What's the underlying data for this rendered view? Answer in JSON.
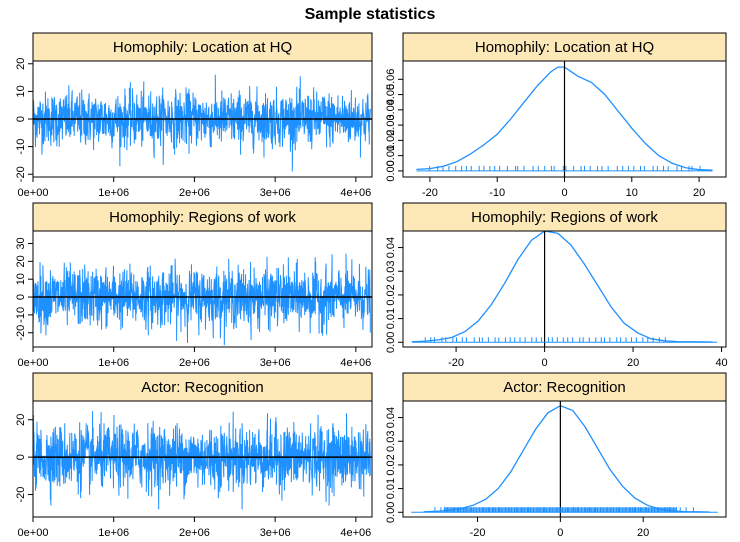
{
  "figure": {
    "title": "Sample statistics"
  },
  "colors": {
    "series": "#1e90ff",
    "strip": "#fde8b7",
    "axis": "#000000"
  },
  "chart_data": [
    {
      "type": "line",
      "panel": "trace",
      "title": "Homophily: Location at HQ",
      "xlim": [
        0,
        4200000
      ],
      "ylim": [
        -21,
        21
      ],
      "x_ticks": [
        0,
        1000000,
        2000000,
        3000000,
        4000000
      ],
      "x_tick_labels": [
        "0e+00",
        "1e+06",
        "2e+06",
        "3e+06",
        "4e+06"
      ],
      "y_ticks": [
        -20,
        -10,
        0,
        10,
        20
      ],
      "y_tick_labels": [
        "-20",
        "-10",
        "0",
        "10",
        "20"
      ],
      "mean_line": 0,
      "spread_sd": 4.9,
      "y_range": [
        -19,
        19
      ]
    },
    {
      "type": "area",
      "panel": "density",
      "title": "Homophily: Location at HQ",
      "xlim": [
        -24,
        24
      ],
      "ylim": [
        -0.004,
        0.072
      ],
      "x_ticks": [
        -20,
        -10,
        0,
        10,
        20
      ],
      "x_tick_labels": [
        "-20",
        "-10",
        "0",
        "10",
        "20"
      ],
      "y_ticks": [
        0,
        0.01,
        0.02,
        0.03,
        0.04,
        0.05,
        0.06
      ],
      "y_tick_labels": [
        "0.00",
        "0.01",
        "0.02",
        "0.03",
        "0.04",
        "0.05",
        "0.06"
      ],
      "density": {
        "x": [
          -22,
          -20,
          -18,
          -16,
          -14,
          -12,
          -10,
          -8,
          -6,
          -4,
          -2,
          -1,
          0,
          1,
          2,
          4,
          6,
          8,
          10,
          12,
          14,
          16,
          18,
          20,
          22
        ],
        "y": [
          0.001,
          0.0015,
          0.003,
          0.006,
          0.011,
          0.017,
          0.024,
          0.034,
          0.045,
          0.056,
          0.065,
          0.068,
          0.068,
          0.065,
          0.062,
          0.058,
          0.05,
          0.039,
          0.028,
          0.018,
          0.01,
          0.005,
          0.002,
          0.0008,
          0.0005
        ]
      },
      "vline": 0,
      "rug_range": [
        -20,
        20
      ]
    },
    {
      "type": "line",
      "panel": "trace",
      "title": "Homophily: Regions of work",
      "xlim": [
        0,
        4200000
      ],
      "ylim": [
        -28,
        37
      ],
      "x_ticks": [
        0,
        1000000,
        2000000,
        3000000,
        4000000
      ],
      "x_tick_labels": [
        "0e+00",
        "1e+06",
        "2e+06",
        "3e+06",
        "4e+06"
      ],
      "y_ticks": [
        -20,
        -10,
        0,
        10,
        20,
        30
      ],
      "y_tick_labels": [
        "-20",
        "-10",
        "0",
        "10",
        "20",
        "30"
      ],
      "mean_line": 0,
      "spread_sd": 8.2,
      "y_range": [
        -27,
        34
      ]
    },
    {
      "type": "area",
      "panel": "density",
      "title": "Homophily: Regions of work",
      "xlim": [
        -32,
        41
      ],
      "ylim": [
        -0.002,
        0.047
      ],
      "x_ticks": [
        -20,
        0,
        20,
        40
      ],
      "x_tick_labels": [
        "-20",
        "0",
        "20",
        "40"
      ],
      "y_ticks": [
        0,
        0.01,
        0.02,
        0.03,
        0.04
      ],
      "y_tick_labels": [
        "0.00",
        "0.01",
        "0.02",
        "0.03",
        "0.04"
      ],
      "density": {
        "x": [
          -30,
          -27,
          -24,
          -21,
          -18,
          -15,
          -12,
          -9,
          -6,
          -3,
          0,
          3,
          6,
          9,
          12,
          15,
          18,
          21,
          24,
          27,
          30,
          34,
          38
        ],
        "y": [
          0.0002,
          0.0005,
          0.001,
          0.002,
          0.0045,
          0.009,
          0.016,
          0.025,
          0.035,
          0.043,
          0.047,
          0.046,
          0.041,
          0.033,
          0.024,
          0.015,
          0.008,
          0.004,
          0.0015,
          0.0006,
          0.0003,
          0.0002,
          0.0001
        ]
      },
      "vline": 0,
      "rug_range": [
        -27,
        27
      ]
    },
    {
      "type": "line",
      "panel": "trace",
      "title": "Actor: Recognition",
      "xlim": [
        0,
        4200000
      ],
      "ylim": [
        -32,
        30
      ],
      "x_ticks": [
        0,
        1000000,
        2000000,
        3000000,
        4000000
      ],
      "x_tick_labels": [
        "0e+00",
        "1e+06",
        "2e+06",
        "3e+06",
        "4e+06"
      ],
      "y_ticks": [
        -20,
        0,
        20
      ],
      "y_tick_labels": [
        "-20",
        "0",
        "20"
      ],
      "mean_line": 0,
      "spread_sd": 8.6,
      "y_range": [
        -28,
        28
      ]
    },
    {
      "type": "area",
      "panel": "density",
      "title": "Actor: Recognition",
      "xlim": [
        -38,
        40
      ],
      "ylim": [
        -0.002,
        0.047
      ],
      "x_ticks": [
        -20,
        0,
        20
      ],
      "x_tick_labels": [
        "-20",
        "0",
        "20"
      ],
      "y_ticks": [
        0,
        0.01,
        0.02,
        0.03,
        0.04
      ],
      "y_tick_labels": [
        "0.00",
        "0.01",
        "0.02",
        "0.03",
        "0.04"
      ],
      "density": {
        "x": [
          -33,
          -30,
          -27,
          -24,
          -21,
          -18,
          -15,
          -12,
          -9,
          -6,
          -3,
          0,
          3,
          6,
          9,
          12,
          15,
          18,
          21,
          24,
          27,
          30,
          33,
          36
        ],
        "y": [
          0.0002,
          0.0004,
          0.0008,
          0.0016,
          0.003,
          0.0055,
          0.01,
          0.017,
          0.026,
          0.035,
          0.042,
          0.045,
          0.043,
          0.036,
          0.027,
          0.018,
          0.011,
          0.006,
          0.003,
          0.0013,
          0.0006,
          0.0003,
          0.0002,
          0.0001
        ]
      },
      "vline": 0,
      "rug_range": [
        -30,
        32
      ]
    }
  ]
}
